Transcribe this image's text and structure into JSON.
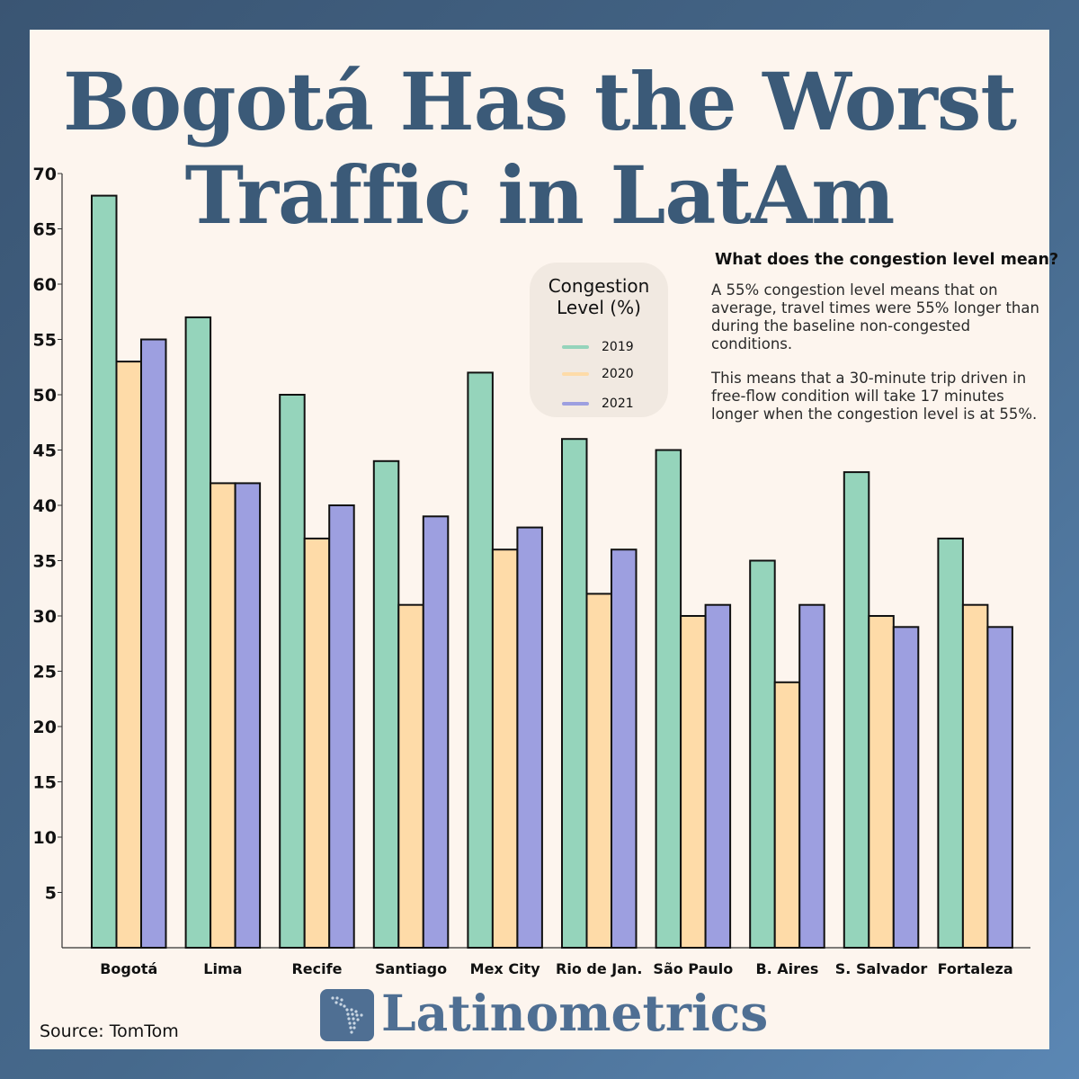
{
  "title_lines": [
    "Bogotá Has the Worst",
    "Traffic in LatAm"
  ],
  "legend": {
    "title_lines": [
      "Congestion",
      "Level (%)"
    ],
    "items": [
      {
        "label": "2019",
        "color": "#95d4bb"
      },
      {
        "label": "2020",
        "color": "#fedba8"
      },
      {
        "label": "2021",
        "color": "#9d9fe0"
      }
    ]
  },
  "note": {
    "heading": "What does the congestion level mean?",
    "paragraphs": [
      "A 55% congestion level means that on average, travel times were 55% longer than during the baseline non-congested conditions.",
      "This means that a 30-minute trip driven in free-flow condition will take 17 minutes longer when the congestion level is at 55%."
    ]
  },
  "brand": {
    "name": "Latinometrics",
    "logo_icon": "latin-america-map-icon",
    "color": "#4f6f93"
  },
  "source": "Source: TomTom",
  "chart_data": {
    "type": "bar",
    "categories": [
      "Bogotá",
      "Lima",
      "Recife",
      "Santiago",
      "Mex City",
      "Rio de Jan.",
      "São Paulo",
      "B. Aires",
      "S. Salvador",
      "Fortaleza"
    ],
    "series": [
      {
        "name": "2019",
        "color": "#95d4bb",
        "values": [
          68,
          57,
          50,
          44,
          52,
          46,
          45,
          35,
          43,
          37
        ]
      },
      {
        "name": "2020",
        "color": "#fedba8",
        "values": [
          53,
          42,
          37,
          31,
          36,
          32,
          30,
          24,
          30,
          31
        ]
      },
      {
        "name": "2021",
        "color": "#9d9fe0",
        "values": [
          55,
          42,
          40,
          39,
          38,
          36,
          31,
          31,
          29,
          29
        ]
      }
    ],
    "yticks": [
      5,
      10,
      15,
      20,
      25,
      30,
      35,
      40,
      45,
      50,
      55,
      60,
      65,
      70
    ],
    "ylim": [
      0,
      70
    ],
    "grid": false,
    "legend_position": "center"
  }
}
